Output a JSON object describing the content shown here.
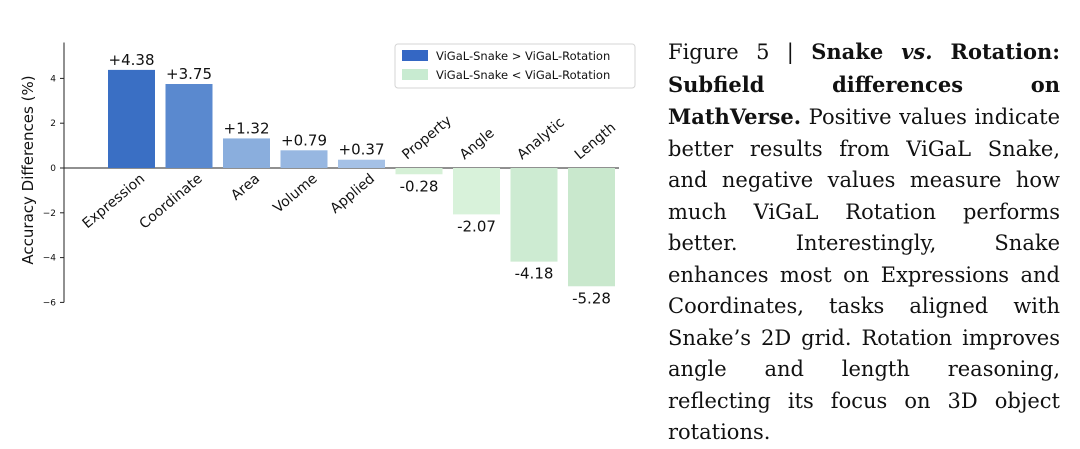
{
  "chart_data": {
    "type": "bar",
    "ylabel": "Accuracy Differences (%)",
    "xlabel": "",
    "ylim": [
      -6,
      5.6
    ],
    "yticks": [
      -6,
      -4,
      -2,
      0,
      2,
      4
    ],
    "grid": false,
    "legend_placement": "top-right",
    "categories": [
      "Expression",
      "Coordinate",
      "Area",
      "Volume",
      "Applied",
      "Property",
      "Angle",
      "Analytic",
      "Length"
    ],
    "values": [
      4.38,
      3.75,
      1.32,
      0.79,
      0.37,
      -0.28,
      -2.07,
      -4.18,
      -5.28
    ],
    "value_labels": [
      "+4.38",
      "+3.75",
      "+1.32",
      "+0.79",
      "+0.37",
      "-0.28",
      "-2.07",
      "-4.18",
      "-5.28"
    ],
    "bar_colors": [
      "#3a6fc4",
      "#5a89cf",
      "#8aaedd",
      "#97b7e1",
      "#a5c1e6",
      "#d5f0d6",
      "#d8f2da",
      "#cdebd2",
      "#c9e8cd"
    ],
    "legend": [
      {
        "label": "ViGaL-Snake > ViGaL-Rotation",
        "color": "#3467c4"
      },
      {
        "label": "ViGaL-Snake < ViGaL-Rotation",
        "color": "#c8ebd1"
      }
    ]
  },
  "caption": {
    "figure_label": "Figure 5 | ",
    "title_part1": "Snake ",
    "title_vs": "vs.",
    "title_part2": " Rotation: Subfield differences on MathVerse.",
    "body": " Positive values indicate better results from ViGaL Snake, and negative values measure how much ViGaL Rotation performs better. Interestingly, Snake enhances most on Expressions and Coordinates, tasks aligned with Snake’s 2D grid. Rotation improves angle and length reasoning, reflecting its focus on 3D object rotations."
  }
}
